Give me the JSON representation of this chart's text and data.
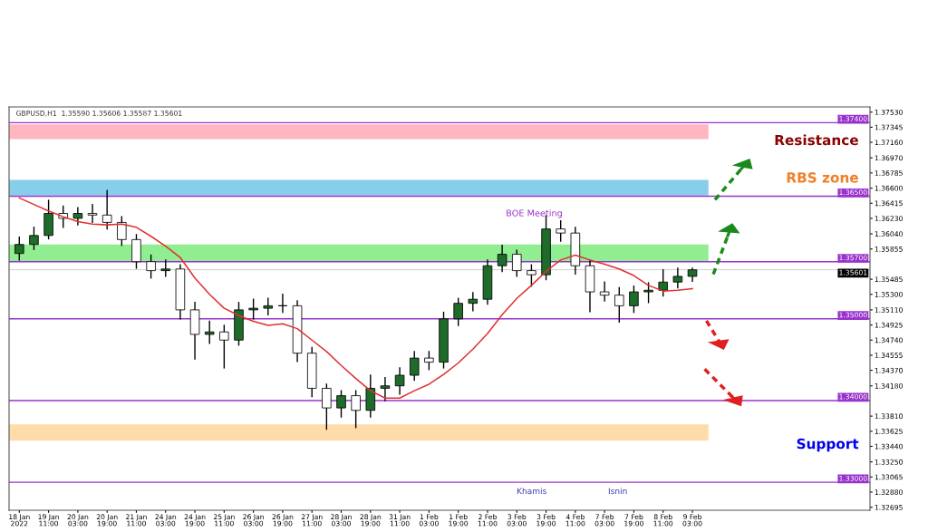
{
  "chart_data": {
    "type": "candlestick",
    "categories": [
      "18 Jan 2022",
      null,
      "19 Jan 11:00",
      null,
      "20 Jan 03:00",
      null,
      "20 Jan 19:00",
      null,
      "21 Jan 11:00",
      null,
      "24 Jan 03:00",
      null,
      "24 Jan 19:00",
      null,
      "25 Jan 11:00",
      null,
      "26 Jan 03:00",
      null,
      "26 Jan 19:00",
      null,
      "27 Jan 11:00",
      null,
      "28 Jan 03:00",
      null,
      "28 Jan 19:00",
      null,
      "31 Jan 11:00",
      null,
      "1 Feb 03:00",
      null,
      "1 Feb 19:00",
      null,
      "2 Feb 11:00",
      null,
      "3 Feb 03:00",
      null,
      "3 Feb 19:00",
      null,
      "4 Feb 11:00",
      null,
      "7 Feb 03:00",
      null,
      "7 Feb 19:00",
      null,
      "8 Feb 11:00",
      null,
      "9 Feb 03:00"
    ],
    "series": [
      {
        "colors": [
          "#1e6b2a",
          "#1e6b2a",
          "#1e6b2a",
          "#ffffff",
          "#1e6b2a",
          "#ffffff",
          "#ffffff",
          "#ffffff",
          "#ffffff",
          "#ffffff",
          "#1e6b2a",
          "#ffffff",
          "#ffffff",
          "#1e6b2a",
          "#ffffff",
          "#1e6b2a",
          "#1e6b2a",
          "#1e6b2a",
          "#1e6b2a",
          "#ffffff",
          "#ffffff",
          "#ffffff",
          "#1e6b2a",
          "#ffffff",
          "#1e6b2a",
          "#1e6b2a",
          "#1e6b2a",
          "#1e6b2a",
          "#ffffff",
          "#1e6b2a",
          "#1e6b2a",
          "#1e6b2a",
          "#1e6b2a",
          "#1e6b2a",
          "#ffffff",
          "#ffffff",
          "#1e6b2a",
          "#ffffff",
          "#ffffff",
          "#ffffff",
          "#ffffff",
          "#ffffff",
          "#1e6b2a",
          "#1e6b2a",
          "#1e6b2a",
          "#1e6b2a",
          "#1e6b2a"
        ],
        "ohlc": [
          [
            1.358,
            1.36,
            1.3572,
            1.3591
          ],
          [
            1.3591,
            1.3612,
            1.3585,
            1.3602
          ],
          [
            1.3602,
            1.3645,
            1.3598,
            1.3629
          ],
          [
            1.3629,
            1.3638,
            1.3612,
            1.3623
          ],
          [
            1.3623,
            1.3636,
            1.3615,
            1.3629
          ],
          [
            1.3629,
            1.364,
            1.3618,
            1.3627
          ],
          [
            1.3627,
            1.3657,
            1.361,
            1.3618
          ],
          [
            1.3618,
            1.3625,
            1.359,
            1.3597
          ],
          [
            1.3597,
            1.3603,
            1.3562,
            1.357
          ],
          [
            1.357,
            1.3578,
            1.355,
            1.3559
          ],
          [
            1.3559,
            1.3572,
            1.3552,
            1.3561
          ],
          [
            1.3561,
            1.3566,
            1.35,
            1.3511
          ],
          [
            1.3511,
            1.352,
            1.3451,
            1.3481
          ],
          [
            1.3481,
            1.3497,
            1.347,
            1.3484
          ],
          [
            1.3484,
            1.3492,
            1.344,
            1.3474
          ],
          [
            1.3474,
            1.352,
            1.3468,
            1.3511
          ],
          [
            1.3511,
            1.3524,
            1.35,
            1.3513
          ],
          [
            1.3513,
            1.3525,
            1.3505,
            1.3516
          ],
          [
            1.3516,
            1.353,
            1.3508,
            1.3516
          ],
          [
            1.3516,
            1.3522,
            1.3448,
            1.3458
          ],
          [
            1.3458,
            1.3465,
            1.3405,
            1.3415
          ],
          [
            1.3415,
            1.342,
            1.3365,
            1.3391
          ],
          [
            1.3391,
            1.3412,
            1.338,
            1.3406
          ],
          [
            1.3406,
            1.3412,
            1.3367,
            1.3388
          ],
          [
            1.3388,
            1.3431,
            1.338,
            1.3415
          ],
          [
            1.3415,
            1.3428,
            1.34,
            1.3418
          ],
          [
            1.3418,
            1.344,
            1.3408,
            1.3431
          ],
          [
            1.3431,
            1.346,
            1.3425,
            1.3452
          ],
          [
            1.3452,
            1.346,
            1.3438,
            1.3447
          ],
          [
            1.3447,
            1.3508,
            1.344,
            1.35
          ],
          [
            1.35,
            1.3525,
            1.3492,
            1.3519
          ],
          [
            1.3519,
            1.3532,
            1.351,
            1.3524
          ],
          [
            1.3524,
            1.3572,
            1.3518,
            1.3565
          ],
          [
            1.3565,
            1.359,
            1.3558,
            1.3579
          ],
          [
            1.3579,
            1.3584,
            1.3552,
            1.3559
          ],
          [
            1.3559,
            1.3566,
            1.354,
            1.3554
          ],
          [
            1.3554,
            1.3626,
            1.3548,
            1.361
          ],
          [
            1.361,
            1.362,
            1.3595,
            1.3605
          ],
          [
            1.3605,
            1.3612,
            1.3555,
            1.3565
          ],
          [
            1.3565,
            1.3572,
            1.3509,
            1.3533
          ],
          [
            1.3533,
            1.3545,
            1.3522,
            1.3529
          ],
          [
            1.3529,
            1.3538,
            1.3496,
            1.3516
          ],
          [
            1.3516,
            1.354,
            1.3508,
            1.3533
          ],
          [
            1.3533,
            1.3544,
            1.352,
            1.3535
          ],
          [
            1.3535,
            1.356,
            1.3528,
            1.3545
          ],
          [
            1.3545,
            1.3562,
            1.3538,
            1.3552
          ],
          [
            1.3552,
            1.3562,
            1.3546,
            1.356
          ]
        ]
      },
      {
        "type": "line",
        "color": "#e03030",
        "values": [
          1.3648,
          1.364,
          1.3632,
          1.3625,
          1.3619,
          1.3616,
          1.3615,
          1.3616,
          1.3612,
          1.3601,
          1.3589,
          1.3575,
          1.355,
          1.353,
          1.3513,
          1.3504,
          1.3497,
          1.3492,
          1.3494,
          1.3488,
          1.3474,
          1.346,
          1.3443,
          1.3427,
          1.3412,
          1.3403,
          1.3403,
          1.3412,
          1.342,
          1.3432,
          1.3446,
          1.3463,
          1.3482,
          1.3505,
          1.3525,
          1.3541,
          1.3558,
          1.3572,
          1.3578,
          1.3572,
          1.3567,
          1.3561,
          1.3553,
          1.3541,
          1.3534,
          1.3535,
          1.3537
        ]
      }
    ],
    "ylim": [
      1.32658,
      1.37593
    ],
    "yticks": [
      {
        "value": 1.3753,
        "label": "1.37530"
      },
      {
        "value": 1.37345,
        "label": "1.37345"
      },
      {
        "value": 1.3716,
        "label": "1.37160"
      },
      {
        "value": 1.3697,
        "label": "1.36970"
      },
      {
        "value": 1.36785,
        "label": "1.36785"
      },
      {
        "value": 1.366,
        "label": "1.36600"
      },
      {
        "value": 1.36415,
        "label": "1.36415"
      },
      {
        "value": 1.3623,
        "label": "1.36230"
      },
      {
        "value": 1.3604,
        "label": "1.36040"
      },
      {
        "value": 1.35855,
        "label": "1.35855"
      },
      {
        "value": 1.35485,
        "label": "1.35485"
      },
      {
        "value": 1.353,
        "label": "1.35300"
      },
      {
        "value": 1.3511,
        "label": "1.35110"
      },
      {
        "value": 1.34925,
        "label": "1.34925"
      },
      {
        "value": 1.3474,
        "label": "1.34740"
      },
      {
        "value": 1.34555,
        "label": "1.34555"
      },
      {
        "value": 1.3437,
        "label": "1.34370"
      },
      {
        "value": 1.3418,
        "label": "1.34180"
      },
      {
        "value": 1.3381,
        "label": "1.33810"
      },
      {
        "value": 1.33625,
        "label": "1.33625"
      },
      {
        "value": 1.3344,
        "label": "1.33440"
      },
      {
        "value": 1.3325,
        "label": "1.33250"
      },
      {
        "value": 1.33065,
        "label": "1.33065"
      },
      {
        "value": 1.3288,
        "label": "1.32880"
      },
      {
        "value": 1.32695,
        "label": "1.32695"
      }
    ],
    "ref_lines": [
      {
        "axis": "y",
        "value": 1.374,
        "label": "1.37400",
        "color": "#9932cc"
      },
      {
        "axis": "y",
        "value": 1.365,
        "label": "1.36500",
        "color": "#9932cc"
      },
      {
        "axis": "y",
        "value": 1.357,
        "label": "1.35700",
        "color": "#9932cc"
      },
      {
        "axis": "y",
        "value": 1.35601,
        "label": "1.35601",
        "color": "#000000"
      },
      {
        "axis": "y",
        "value": 1.35,
        "label": "1.35000",
        "color": "#9932cc"
      },
      {
        "axis": "y",
        "value": 1.34,
        "label": "1.34000",
        "color": "#9932cc"
      },
      {
        "axis": "y",
        "value": 1.33,
        "label": "1.33000",
        "color": "#9932cc"
      }
    ],
    "bands": [
      {
        "axis": "y",
        "from": 1.372,
        "to": 1.3738,
        "color": "#ffb6c1"
      },
      {
        "axis": "y",
        "from": 1.3651,
        "to": 1.367,
        "color": "#87ceeb"
      },
      {
        "axis": "y",
        "from": 1.357,
        "to": 1.3591,
        "color": "#90ee90"
      },
      {
        "axis": "y",
        "from": 1.3351,
        "to": 1.3371,
        "color": "#fddcaa"
      }
    ],
    "annotations": [
      "GBPUSD,H1  1.35590 1.35606 1.35587 1.35601",
      "Resistance",
      "RBS zone",
      "Support",
      "BOE Meeting",
      "Khamis",
      "Isnin"
    ],
    "grid": false,
    "legend": false
  }
}
